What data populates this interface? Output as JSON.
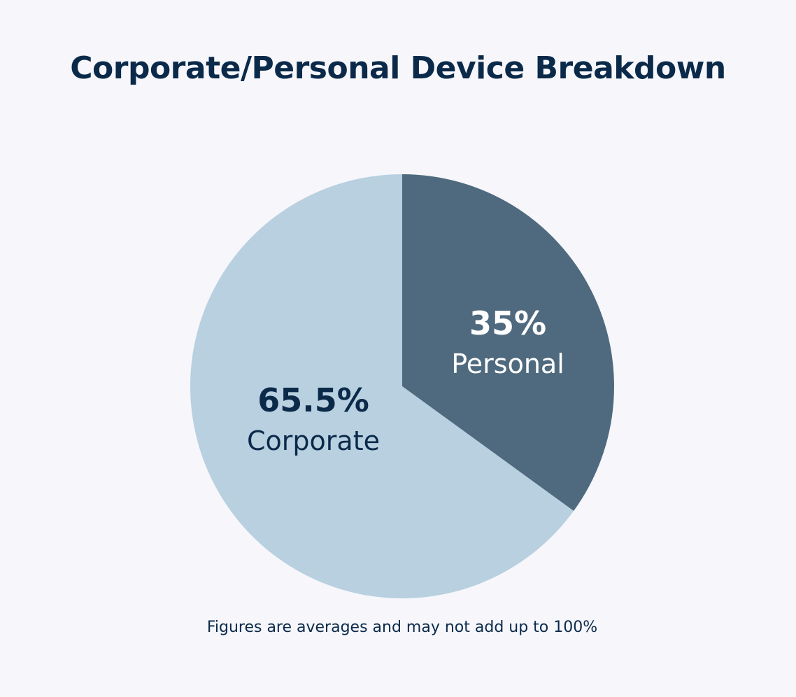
{
  "chart_data": {
    "type": "pie",
    "title": "Corporate/Personal Device Breakdown",
    "note": "Figures are averages and may not add up to 100%",
    "slices": [
      {
        "label": "Personal",
        "value": 35,
        "value_label": "35%",
        "color": "#4f6a7e",
        "text_color": "#ffffff"
      },
      {
        "label": "Corporate",
        "value": 65.5,
        "value_label": "65.5%",
        "color": "#b8d0e0",
        "text_color": "#0b2a4a"
      }
    ],
    "start_angle": "12 o'clock, clockwise",
    "legend": "none"
  },
  "colors": {
    "background": "#f6f6fb",
    "title": "#0b2a4a"
  }
}
